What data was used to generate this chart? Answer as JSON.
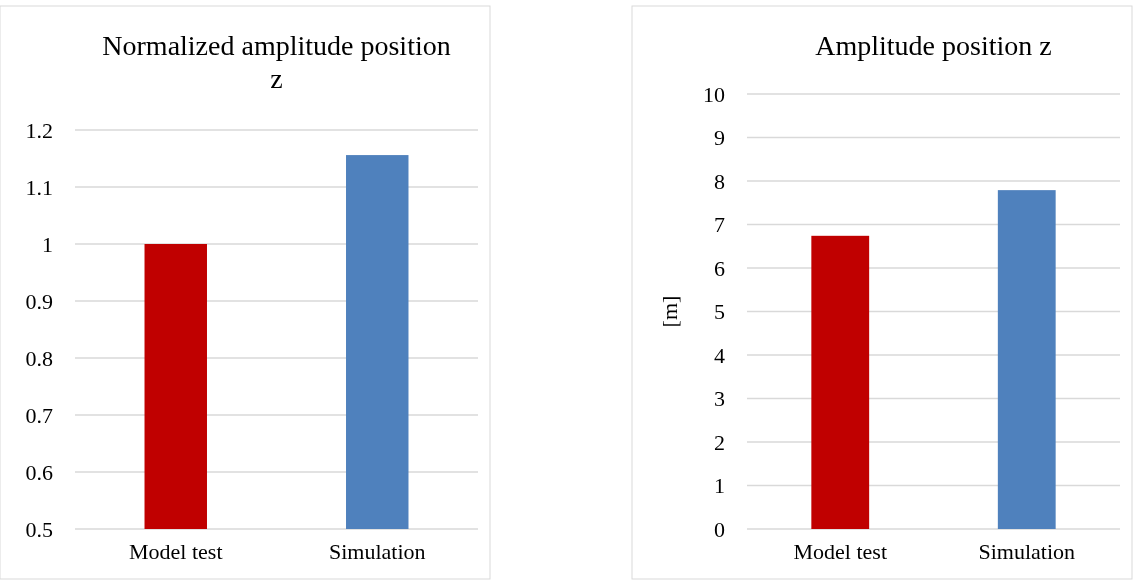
{
  "chart_data": [
    {
      "type": "bar",
      "title": "Normalized amplitude position z",
      "categories": [
        "Model test",
        "Simulation"
      ],
      "colors": [
        "#c00000",
        "#4f81bd"
      ],
      "values": [
        1.0,
        1.156
      ],
      "ylim": [
        0.5,
        1.2
      ],
      "yticks": [
        {
          "value": 0.5,
          "label": "0.5"
        },
        {
          "value": 0.6,
          "label": "0.6"
        },
        {
          "value": 0.7,
          "label": "0.7"
        },
        {
          "value": 0.8,
          "label": "0.8"
        },
        {
          "value": 0.9,
          "label": "0.9"
        },
        {
          "value": 1,
          "label": "1"
        },
        {
          "value": 1.1,
          "label": "1.1"
        },
        {
          "value": 1.2,
          "label": "1.2"
        }
      ],
      "grid": "y"
    },
    {
      "type": "bar",
      "title": "Amplitude position z",
      "ylabel": "[m]",
      "categories": [
        "Model test",
        "Simulation"
      ],
      "colors": [
        "#c00000",
        "#4f81bd"
      ],
      "values": [
        6.74,
        7.79
      ],
      "ylim": [
        0,
        10
      ],
      "yticks": [
        0,
        1,
        2,
        3,
        4,
        5,
        6,
        7,
        8,
        9,
        10
      ],
      "grid": "y"
    }
  ]
}
